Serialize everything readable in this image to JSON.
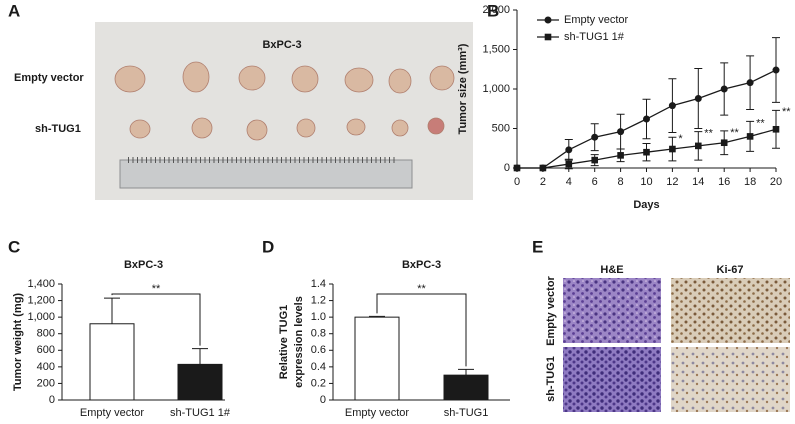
{
  "panel_a": {
    "panel": "A",
    "title": "BxPC-3",
    "rows": [
      "Empty vector",
      "sh-TUG1"
    ]
  },
  "panel_e": {
    "panel": "E",
    "columns": [
      "H&E",
      "Ki-67"
    ],
    "rows": [
      "Empty vector",
      "sh-TUG1"
    ]
  },
  "chart_data": [
    {
      "type": "line",
      "panel": "B",
      "xlabel": "Days",
      "ylabel": "Tumor size (mm³)",
      "x": [
        0,
        2,
        4,
        6,
        8,
        10,
        12,
        14,
        16,
        18,
        20
      ],
      "series": [
        {
          "name": "Empty vector",
          "color": "#1a1a1a",
          "marker": "circle",
          "values": [
            0,
            0,
            230,
            390,
            460,
            620,
            790,
            880,
            1000,
            1080,
            1240
          ],
          "errors": [
            0,
            0,
            130,
            170,
            220,
            250,
            340,
            380,
            330,
            340,
            410
          ]
        },
        {
          "name": "sh-TUG1 1#",
          "color": "#1a1a1a",
          "marker": "square",
          "values": [
            0,
            0,
            50,
            100,
            160,
            200,
            240,
            280,
            320,
            400,
            490
          ],
          "errors": [
            0,
            0,
            60,
            70,
            80,
            110,
            150,
            180,
            150,
            190,
            240
          ]
        }
      ],
      "xlim": [
        0,
        20
      ],
      "ylim": [
        0,
        2000
      ],
      "xticks": [
        0,
        2,
        4,
        6,
        8,
        10,
        12,
        14,
        16,
        18,
        20
      ],
      "yticks": [
        0,
        500,
        {
          "value": 1000,
          "label": "1,000"
        },
        {
          "value": 1500,
          "label": "1,500"
        },
        {
          "value": 2000,
          "label": "2,000"
        }
      ],
      "legend": "upper left",
      "annotations": [
        {
          "x": 12,
          "text": "*"
        },
        {
          "x": 14,
          "text": "**"
        },
        {
          "x": 16,
          "text": "**"
        },
        {
          "x": 18,
          "text": "**"
        },
        {
          "x": 20,
          "text": "**"
        }
      ]
    },
    {
      "type": "bar",
      "panel": "C",
      "title": "BxPC-3",
      "ylabel": "Tumor weight (mg)",
      "categories": [
        "Empty vector",
        "sh-TUG1 1#"
      ],
      "values": [
        920,
        430
      ],
      "errors": [
        310,
        190
      ],
      "colors": [
        "#ffffff",
        "#1a1a1a"
      ],
      "ylim": [
        0,
        1400
      ],
      "yticks": [
        0,
        200,
        400,
        600,
        800,
        {
          "value": 1000,
          "label": "1,000"
        },
        {
          "value": 1200,
          "label": "1,200"
        },
        {
          "value": 1400,
          "label": "1,400"
        }
      ],
      "significance": "**"
    },
    {
      "type": "bar",
      "panel": "D",
      "title": "BxPC-3",
      "ylabel": [
        "Relative TUG1",
        "expression levels"
      ],
      "categories": [
        "Empty vector",
        "sh-TUG1"
      ],
      "values": [
        1,
        0.3
      ],
      "errors": [
        0.01,
        0.07
      ],
      "colors": [
        "#ffffff",
        "#1a1a1a"
      ],
      "ylim": [
        0,
        1.4
      ],
      "yticks": [
        0,
        0.2,
        0.4,
        0.6,
        0.8,
        {
          "value": 1,
          "label": "1.0"
        },
        1.2,
        1.4
      ],
      "significance": "**"
    }
  ]
}
